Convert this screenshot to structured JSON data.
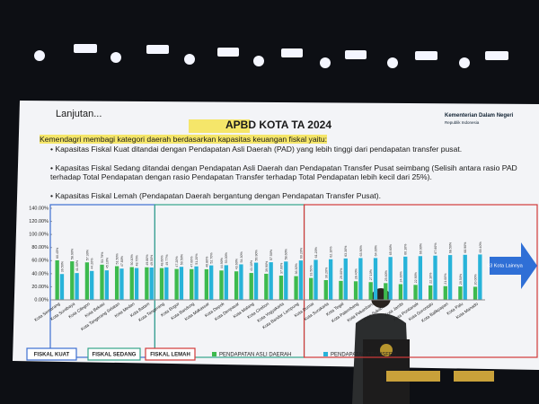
{
  "slide": {
    "heading": "Lanjutan...",
    "title": "APBD KOTA TA 2024",
    "ministry": "Kementerian Dalam Negeri",
    "country": "Republik Indonesia",
    "intro": "Kemendagri membagi kategori daerah berdasarkan kapasitas keuangan fiskal yaitu:",
    "bullets": [
      "Kapasitas Fiskal Kuat ditandai dengan Pendapatan Asli Daerah (PAD) yang lebih tinggi dari pendapatan transfer pusat.",
      "Kapasitas Fiskal Sedang ditandai dengan Pendapatan Asli Daerah dan Pendapatan Transfer Pusat seimbang (Selisih antara rasio PAD terhadap Total Pendapatan dengan rasio Pendapatan Transfer terhadap Total Pendapatan lebih kecil dari 25%).",
      "Kapasitas Fiskal Lemah (Pendapatan Daerah bergantung dengan Pendapatan Transfer Pusat)."
    ],
    "groups": [
      "FISKAL KUAT",
      "FISKAL SEDANG",
      "FISKAL LEMAH"
    ],
    "arrow": "63 Kota Lainnya"
  },
  "chart_data": {
    "type": "bar",
    "categories": [
      "Kota Semarang",
      "Kota Surabaya",
      "Kota Cilegon",
      "Kota Bekasi",
      "Kota Tangerang Selatan",
      "Kota Medan",
      "Kota Batam",
      "Kota Tangerang",
      "Kota Bogor",
      "Kota Bandung",
      "Kota Makassar",
      "Kota Depok",
      "Kota Denpasar",
      "Kota Malang",
      "Kota Cirebon",
      "Kota Yogyakarta",
      "Kota Bandar Lampung",
      "Kota Dumai",
      "Kota Surakarta",
      "Kota Tegal",
      "Kota Palembang",
      "Kota Pekanbaru",
      "Kota Sukabumi",
      "Kota Jambi",
      "Kota Pontianak",
      "Kota Gorontalo",
      "Kota Balikpapan",
      "Kota Palu",
      "Kota Manado"
    ],
    "series": [
      {
        "name": "PENDAPATAN ASLI DAERAH",
        "color": "#3dba4e",
        "values": [
          60.45,
          58.9,
          57.3,
          53.79,
          51.5,
          50.1,
          49.8,
          48.6,
          47.2,
          47.0,
          46.8,
          44.9,
          43.6,
          41.1,
          39.9,
          37.0,
          36.3,
          33.5,
          30.2,
          29.0,
          28.4,
          27.1,
          25.6,
          24.0,
          22.9,
          22.1,
          21.0,
          20.5,
          20.0
        ],
        "value_labels": [
          "60.45%",
          "58.90%",
          "57.30%",
          "53.79%",
          "51.50%",
          "50.10%",
          "49.80%",
          "48.60%",
          "47.20%",
          "47.00%",
          "46.80%",
          "44.90%",
          "43.60%",
          "41.10%",
          "39.90%",
          "37.00%",
          "36.30%",
          "33.50%",
          "30.20%",
          "29.00%",
          "28.40%",
          "27.10%",
          "25.60%",
          "24.00%",
          "22.90%",
          "22.10%",
          "21.00%",
          "20.50%",
          "20.00%"
        ]
      },
      {
        "name": "PENDAPATAN TRANSFER",
        "color": "#27b3d9",
        "values": [
          39.5,
          41.0,
          44.2,
          45.1,
          47.8,
          48.7,
          49.5,
          49.77,
          50.5,
          51.2,
          52.7,
          53.0,
          54.3,
          56.9,
          57.5,
          58.6,
          60.2,
          61.2,
          62.1,
          63.3,
          63.9,
          64.0,
          65.6,
          66.1,
          66.9,
          67.6,
          68.5,
          68.9,
          69.4
        ],
        "value_labels": [
          "39.50%",
          "41.00%",
          "44.20%",
          "45.10%",
          "47.80%",
          "48.70%",
          "49.50%",
          "49.77%",
          "50.50%",
          "51.20%",
          "52.70%",
          "53.00%",
          "54.30%",
          "56.90%",
          "57.50%",
          "58.60%",
          "60.20%",
          "61.20%",
          "62.10%",
          "63.30%",
          "63.90%",
          "64.00%",
          "65.60%",
          "66.10%",
          "66.90%",
          "67.60%",
          "68.50%",
          "68.90%",
          "69.40%"
        ]
      }
    ],
    "ylim": [
      0,
      140
    ],
    "yticks": [
      {
        "value": 0,
        "label": "0.00%"
      },
      {
        "value": 20,
        "label": "20.00%"
      },
      {
        "value": 40,
        "label": "40.00%"
      },
      {
        "value": 60,
        "label": "60.00%"
      },
      {
        "value": 80,
        "label": "80.00%"
      },
      {
        "value": 100,
        "label": "100.00%"
      },
      {
        "value": 120,
        "label": "120.00%"
      },
      {
        "value": 140,
        "label": "140.00%"
      }
    ],
    "grid": false
  }
}
